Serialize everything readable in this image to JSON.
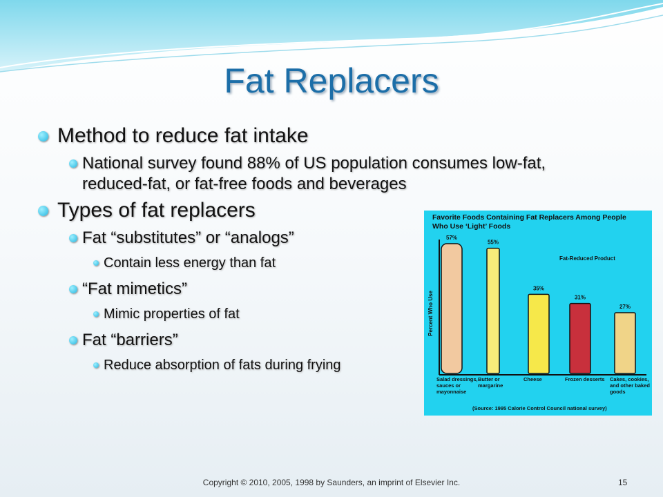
{
  "slide": {
    "title": "Fat Replacers",
    "bullets": [
      {
        "text": "Method to reduce fat intake",
        "children": [
          {
            "text": "National survey found 88% of US population consumes low-fat, reduced-fat, or fat-free foods and beverages",
            "children": []
          }
        ]
      },
      {
        "text": "Types of fat replacers",
        "children": [
          {
            "text": "Fat “substitutes” or “analogs”",
            "children": [
              {
                "text": "Contain less energy than fat"
              }
            ]
          },
          {
            "text": "“Fat mimetics”",
            "children": [
              {
                "text": "Mimic properties of fat"
              }
            ]
          },
          {
            "text": "Fat “barriers”",
            "children": [
              {
                "text": "Reduce absorption of fats during frying"
              }
            ]
          }
        ]
      }
    ]
  },
  "chart_data": {
    "type": "bar",
    "title": "Favorite Foods Containing Fat Replacers Among People Who Use ‘Light’ Foods",
    "y_label": "Percent Who Use",
    "annotation": "Fat-Reduced Product",
    "source": "(Source: 1995 Calorie Control Council national survey)",
    "categories": [
      "Salad dressings, sauces or mayonnaise",
      "Butter or margarine",
      "Cheese",
      "Frozen desserts",
      "Cakes, cookies, and other baked goods"
    ],
    "values": [
      57,
      55,
      35,
      31,
      27
    ],
    "value_labels": [
      "57%",
      "55%",
      "35%",
      "31%",
      "27%"
    ],
    "colors": [
      "#f2c9a0",
      "#f8ec7a",
      "#f6e84a",
      "#c8303c",
      "#f0d488"
    ],
    "ylim": [
      0,
      60
    ]
  },
  "footer": {
    "copyright": "Copyright © 2010, 2005, 1998 by Saunders, an imprint of Elsevier Inc.",
    "page_number": 15
  }
}
